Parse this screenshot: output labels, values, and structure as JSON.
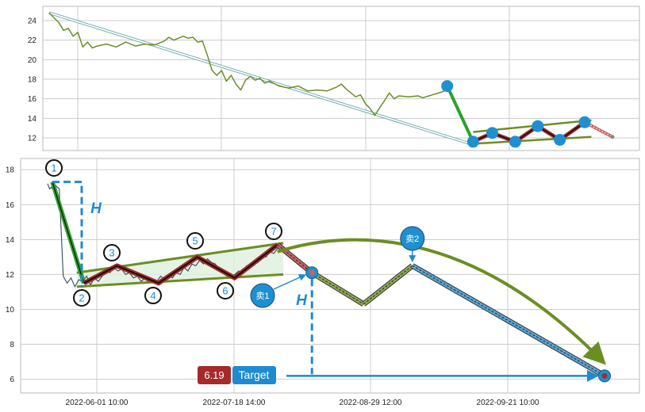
{
  "chart_data": [
    {
      "type": "line",
      "panel": "overview",
      "title": "",
      "xlabel": "",
      "ylabel": "",
      "ylim": [
        11,
        26
      ],
      "yticks": [
        12,
        14,
        16,
        18,
        20,
        22,
        24
      ],
      "xlim": [
        0,
        100
      ],
      "grid": true,
      "series": [
        {
          "name": "",
          "color": "#6b8e23",
          "points": [
            [
              0,
              24.8
            ],
            [
              2,
              23.8
            ],
            [
              3,
              23.0
            ],
            [
              4,
              23.2
            ],
            [
              5,
              22.4
            ],
            [
              6,
              22.8
            ],
            [
              7,
              21.3
            ],
            [
              8,
              21.8
            ],
            [
              9,
              21.2
            ],
            [
              10,
              21.4
            ],
            [
              12,
              21.6
            ],
            [
              14,
              21.3
            ],
            [
              16,
              21.8
            ],
            [
              18,
              21.4
            ],
            [
              20,
              21.6
            ],
            [
              22,
              21.5
            ],
            [
              24,
              21.9
            ],
            [
              25,
              22.3
            ],
            [
              26,
              22.0
            ],
            [
              28,
              22.4
            ],
            [
              29,
              22.2
            ],
            [
              30,
              22.3
            ],
            [
              31,
              21.8
            ],
            [
              32,
              21.9
            ],
            [
              33,
              20.5
            ],
            [
              34,
              18.9
            ],
            [
              35,
              18.4
            ],
            [
              36,
              18.9
            ],
            [
              37,
              17.8
            ],
            [
              38,
              18.4
            ],
            [
              39,
              17.5
            ],
            [
              40,
              16.9
            ],
            [
              41,
              17.9
            ],
            [
              42,
              18.3
            ],
            [
              43,
              17.9
            ],
            [
              44,
              18.1
            ],
            [
              45,
              17.6
            ],
            [
              46,
              17.8
            ],
            [
              48,
              17.3
            ],
            [
              50,
              17.1
            ],
            [
              52,
              17.3
            ],
            [
              54,
              16.8
            ],
            [
              56,
              16.9
            ],
            [
              58,
              16.8
            ],
            [
              60,
              17.2
            ],
            [
              61,
              17.5
            ],
            [
              62,
              17.0
            ],
            [
              63,
              16.6
            ],
            [
              64,
              16.2
            ],
            [
              65,
              16.4
            ],
            [
              66,
              15.5
            ],
            [
              67,
              15.0
            ],
            [
              68,
              14.3
            ],
            [
              69,
              15.1
            ],
            [
              70,
              15.8
            ],
            [
              71,
              16.6
            ],
            [
              72,
              16.0
            ],
            [
              73,
              16.3
            ],
            [
              75,
              16.2
            ],
            [
              77,
              16.3
            ],
            [
              78,
              16.1
            ],
            [
              80,
              16.4
            ],
            [
              82,
              16.7
            ],
            [
              83,
              16.9
            ]
          ]
        },
        {
          "name": "",
          "color": "#5f9ea0",
          "points": [
            [
              0,
              24.8
            ],
            [
              89.2,
              11.2
            ]
          ]
        }
      ],
      "pattern": {
        "points": [
          [
            83.1,
            17.3
          ],
          [
            88.5,
            11.6
          ],
          [
            92.5,
            12.5
          ],
          [
            97.3,
            11.6
          ],
          [
            102,
            13.2
          ],
          [
            106.6,
            11.8
          ],
          [
            111.8,
            13.6
          ]
        ],
        "projection": [
          [
            111.8,
            13.6
          ],
          [
            117.6,
            12.1
          ]
        ],
        "upper_line": [
          [
            88.5,
            12.6
          ],
          [
            113.2,
            13.8
          ]
        ],
        "lower_line": [
          [
            88.5,
            11.4
          ],
          [
            113.2,
            12.1
          ]
        ]
      }
    },
    {
      "type": "line",
      "panel": "pattern-detail",
      "title": "",
      "xlabel": "",
      "ylabel": "",
      "ylim": [
        5.2,
        18.8
      ],
      "yticks": [
        6,
        8,
        10,
        12,
        14,
        16,
        18
      ],
      "x_ticks": [
        "2022-06-01 10:00",
        "2022-07-18 14:00",
        "2022-08-29 12:00",
        "2022-09-21 10:00"
      ],
      "grid": true,
      "price": [
        [
          1,
          17.2
        ],
        [
          1.5,
          16.9
        ],
        [
          2,
          17.0
        ],
        [
          2.5,
          16.8
        ],
        [
          3,
          17.1
        ],
        [
          3.5,
          17.0
        ],
        [
          4,
          16.9
        ],
        [
          5,
          11.9
        ],
        [
          6,
          11.5
        ],
        [
          7,
          11.8
        ],
        [
          8,
          11.3
        ],
        [
          9,
          11.7
        ],
        [
          10,
          11.6
        ],
        [
          11,
          11.9
        ],
        [
          12,
          11.4
        ],
        [
          13,
          11.8
        ],
        [
          14,
          11.6
        ],
        [
          15,
          11.9
        ],
        [
          16,
          12.2
        ],
        [
          17,
          12.1
        ],
        [
          18,
          12.4
        ],
        [
          19,
          12.2
        ],
        [
          20,
          12.3
        ],
        [
          21,
          12.0
        ],
        [
          22,
          12.1
        ],
        [
          23,
          11.8
        ],
        [
          24,
          11.9
        ],
        [
          25,
          11.6
        ],
        [
          26,
          11.8
        ],
        [
          27,
          11.5
        ],
        [
          28,
          11.7
        ],
        [
          29,
          11.6
        ],
        [
          30,
          11.9
        ],
        [
          31,
          11.7
        ],
        [
          32,
          12.0
        ],
        [
          33,
          11.8
        ],
        [
          34,
          12.1
        ],
        [
          35,
          12.0
        ],
        [
          36,
          12.4
        ],
        [
          37,
          12.2
        ],
        [
          38,
          12.6
        ],
        [
          39,
          12.5
        ],
        [
          40,
          12.8
        ],
        [
          41,
          12.6
        ],
        [
          42,
          12.9
        ],
        [
          43,
          12.7
        ],
        [
          44,
          12.6
        ],
        [
          45,
          12.3
        ],
        [
          46,
          12.1
        ],
        [
          47,
          11.9
        ],
        [
          48,
          11.8
        ],
        [
          49,
          12.0
        ],
        [
          50,
          12.2
        ],
        [
          51,
          12.1
        ],
        [
          52,
          12.5
        ],
        [
          53,
          12.4
        ],
        [
          54,
          12.8
        ],
        [
          55,
          12.7
        ],
        [
          56,
          13.1
        ],
        [
          57,
          13.0
        ],
        [
          58,
          13.3
        ],
        [
          59,
          13.2
        ],
        [
          60,
          13.5
        ]
      ],
      "waves": [
        {
          "label": "1",
          "x": 4.5,
          "y": 17.3
        },
        {
          "label": "2",
          "x": 15.5,
          "y": 11.5
        },
        {
          "label": "3",
          "x": 27,
          "y": 12.5
        },
        {
          "label": "4",
          "x": 41.5,
          "y": 11.5
        },
        {
          "label": "5",
          "x": 55,
          "y": 13.0
        },
        {
          "label": "6",
          "x": 68,
          "y": 11.8
        },
        {
          "label": "7",
          "x": 83,
          "y": 13.7
        }
      ],
      "projection": {
        "path": [
          [
            83,
            13.7
          ],
          [
            88,
            12.9
          ],
          [
            95,
            12.1
          ],
          [
            113,
            10.3
          ],
          [
            130,
            12.5
          ],
          [
            197,
            6.2
          ]
        ],
        "sell_points": [
          {
            "label": "卖1",
            "x": 95,
            "y": 12.1
          },
          {
            "label": "卖2",
            "x": 130,
            "y": 12.5
          }
        ]
      },
      "upper_line": [
        [
          13,
          12.1
        ],
        [
          85,
          13.8
        ]
      ],
      "lower_line": [
        [
          13,
          11.3
        ],
        [
          85,
          12.0
        ]
      ],
      "height_label": "H",
      "target": {
        "label": "Target",
        "value": "6.19",
        "y": 6.19,
        "x": 197
      },
      "arc": {
        "from": [
          83,
          13.3
        ],
        "apex_y": 14.0,
        "to": [
          197,
          7.0
        ]
      }
    }
  ],
  "colors": {
    "price_line": "#6b8e23",
    "wave_red": "#a52a2a",
    "wave_green": "#2ca02c",
    "marker_blue": "#1e90d0",
    "target_red": "#a52a2a",
    "target_blue": "#1e8ad0",
    "fill_green": "#dff0df",
    "grid": "#cccccc"
  }
}
